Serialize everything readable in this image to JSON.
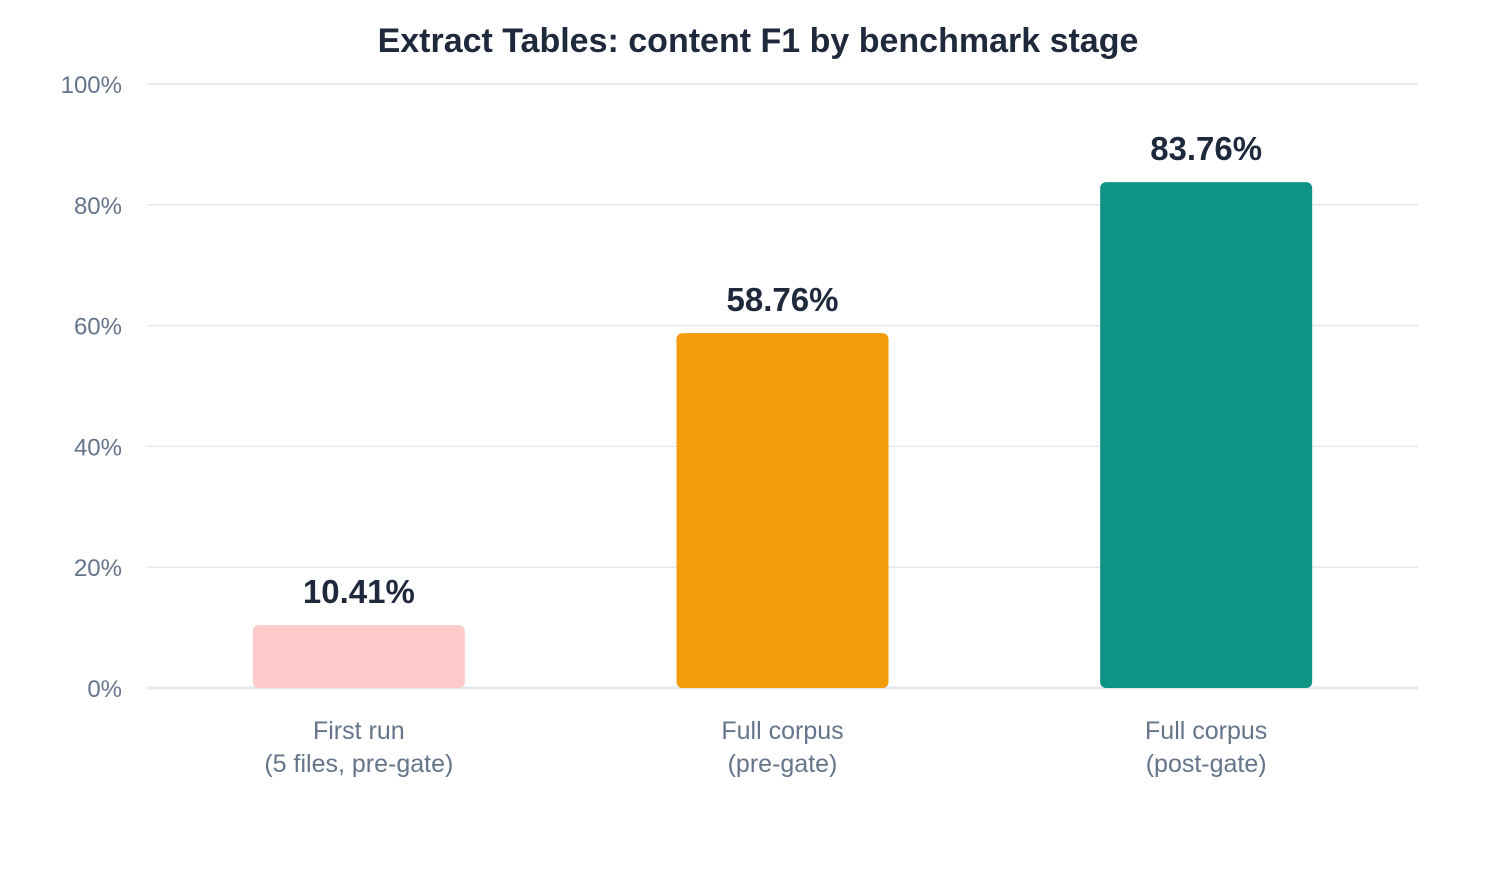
{
  "chart_data": {
    "type": "bar",
    "title": "Extract Tables: content F1 by benchmark stage",
    "xlabel": "",
    "ylabel": "",
    "ylim": [
      0,
      100
    ],
    "yticks": [
      "0%",
      "20%",
      "40%",
      "60%",
      "80%",
      "100%"
    ],
    "ytick_values": [
      0,
      20,
      40,
      60,
      80,
      100
    ],
    "grid": true,
    "categories": [
      [
        "First run",
        "(5 files, pre-gate)"
      ],
      [
        "Full corpus",
        "(pre-gate)"
      ],
      [
        "Full corpus",
        "(post-gate)"
      ]
    ],
    "values": [
      10.41,
      58.76,
      83.76
    ],
    "value_labels": [
      "10.41%",
      "58.76%",
      "83.76%"
    ],
    "colors": [
      "#fecaca",
      "#f39c0e",
      "#0e9384"
    ]
  }
}
